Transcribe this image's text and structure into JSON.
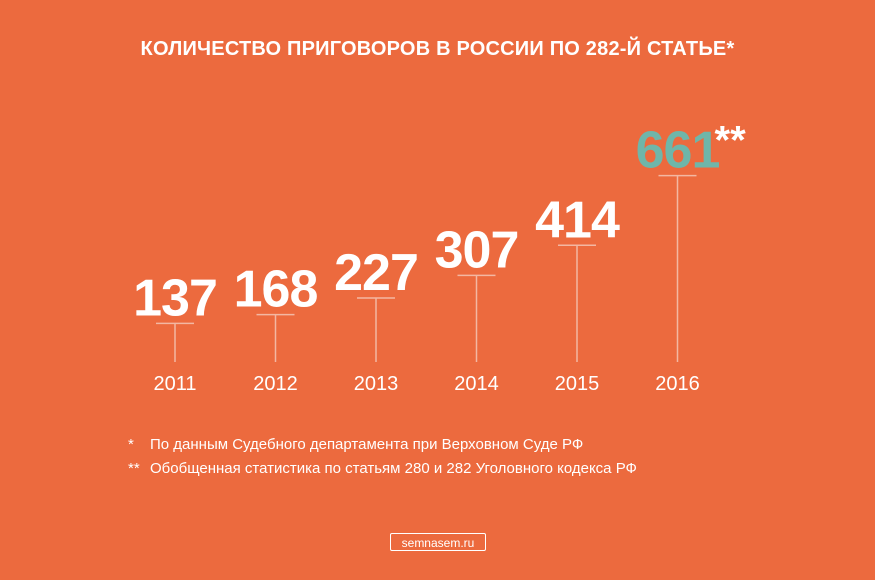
{
  "chart_data": {
    "type": "bar",
    "title": "КОЛИЧЕСТВО ПРИГОВОРОВ В РОССИИ ПО 282-Й СТАТЬЕ*",
    "categories": [
      "2011",
      "2012",
      "2013",
      "2014",
      "2015",
      "2016"
    ],
    "values": [
      137,
      168,
      227,
      307,
      414,
      661
    ],
    "value_labels": [
      "137",
      "168",
      "227",
      "307",
      "414",
      "661"
    ],
    "annotations": [
      {
        "category": "2016",
        "suffix": "**"
      }
    ],
    "colors": {
      "background": "#ec6a3e",
      "text": "#ffffff",
      "line": "#f3b7a2",
      "highlight": "#6fb6a9"
    },
    "highlight_category": "2016",
    "xlabel": "",
    "ylabel": ""
  },
  "footnotes": [
    {
      "mark": "*",
      "text": "По данным Судебного департамента при Верховном Суде РФ"
    },
    {
      "mark": "**",
      "text": "Обобщенная статистика по статьям 280 и 282 Уголовного кодекса РФ"
    }
  ],
  "source": "semnasem.ru"
}
